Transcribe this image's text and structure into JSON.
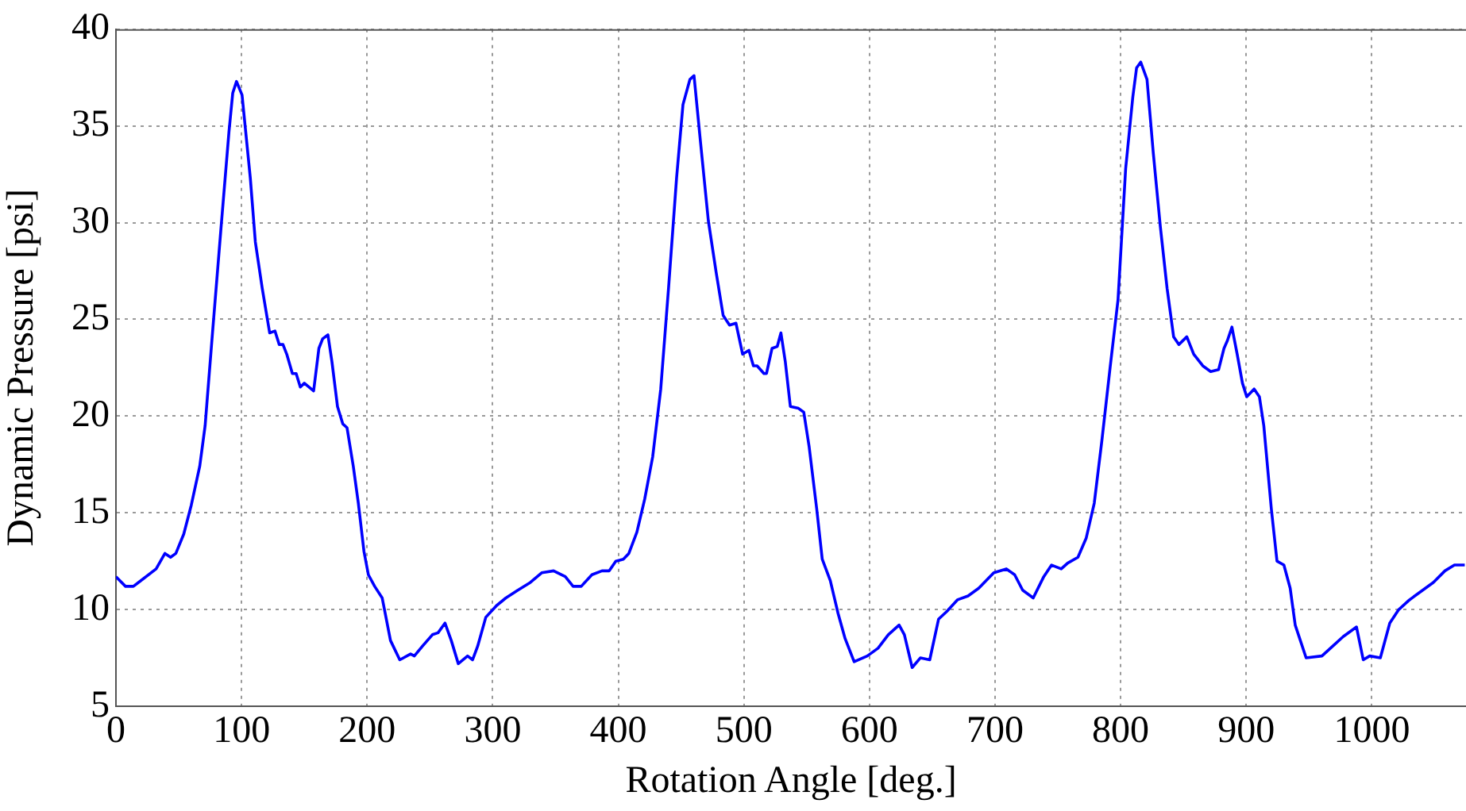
{
  "chart_data": {
    "type": "line",
    "xlabel": "Rotation Angle [deg.]",
    "ylabel": "Dynamic Pressure [psi]",
    "x": [
      0,
      7.6,
      13.9,
      20,
      32,
      39,
      43.5,
      47.7,
      54,
      60,
      66.7,
      71,
      77,
      83.5,
      90,
      93,
      96,
      100.4,
      107,
      111,
      116.5,
      122.4,
      126.6,
      130,
      133,
      136,
      140.5,
      143.5,
      146.8,
      150,
      157.4,
      161.6,
      164.6,
      168.8,
      172,
      176.4,
      180.6,
      184,
      189,
      193,
      197.5,
      201,
      206,
      212,
      218.6,
      226,
      234.6,
      237.6,
      244,
      252,
      256.5,
      262,
      267,
      272.6,
      280,
      284,
      288,
      294.5,
      303,
      310.5,
      320,
      330,
      339,
      348.5,
      357.8,
      364,
      370.5,
      379,
      387,
      392.8,
      398,
      404,
      408.4,
      414.8,
      421,
      427.4,
      433.8,
      440,
      446.4,
      451.5,
      457,
      460.3,
      465.4,
      471.7,
      478,
      483.5,
      488.6,
      493.7,
      499,
      504,
      507.6,
      510.5,
      516,
      518,
      522.4,
      526.6,
      529.5,
      533,
      537,
      543.5,
      547.7,
      552,
      558,
      562.4,
      568.8,
      575,
      580.6,
      587.8,
      598.3,
      606.8,
      615,
      623.6,
      627.8,
      634,
      640.5,
      648,
      655,
      661.6,
      670,
      678.5,
      687,
      699,
      709,
      715.6,
      722,
      730.4,
      738.8,
      745,
      752.7,
      757.8,
      766,
      772.6,
      779,
      785,
      791.6,
      797.9,
      804,
      809.7,
      812.7,
      816,
      821,
      826,
      831.6,
      837,
      842.2,
      846.4,
      852.7,
      858.2,
      865.4,
      871.7,
      878,
      882.3,
      885,
      888.6,
      892.8,
      897,
      900.4,
      906.3,
      910.5,
      914,
      920,
      924.5,
      930,
      935,
      939,
      947.7,
      960.3,
      968.8,
      977.2,
      985.7,
      987.8,
      993.2,
      998.3,
      1006.8,
      1014.3,
      1021.5,
      1030,
      1040.5,
      1049,
      1058.2,
      1065.8,
      1074
    ],
    "values": [
      11.7,
      11.2,
      11.2,
      11.5,
      12.1,
      12.9,
      12.7,
      12.9,
      13.9,
      15.4,
      17.4,
      19.5,
      24.4,
      29.6,
      34.7,
      36.7,
      37.3,
      36.6,
      32.3,
      29,
      26.6,
      24.3,
      24.4,
      23.7,
      23.7,
      23.2,
      22.2,
      22.2,
      21.5,
      21.7,
      21.3,
      23.5,
      24,
      24.2,
      22.8,
      20.5,
      19.6,
      19.4,
      17.4,
      15.5,
      13,
      11.8,
      11.2,
      10.6,
      8.4,
      7.4,
      7.7,
      7.6,
      8.1,
      8.7,
      8.8,
      9.3,
      8.4,
      7.2,
      7.6,
      7.4,
      8.1,
      9.6,
      10.2,
      10.6,
      11,
      11.4,
      11.9,
      12,
      11.7,
      11.2,
      11.2,
      11.8,
      12,
      12,
      12.5,
      12.6,
      12.9,
      14,
      15.7,
      17.9,
      21.4,
      26.6,
      32.3,
      36.1,
      37.4,
      37.6,
      34.2,
      30.1,
      27.4,
      25.2,
      24.7,
      24.8,
      23.2,
      23.4,
      22.6,
      22.6,
      22.2,
      22.2,
      23.5,
      23.6,
      24.3,
      22.8,
      20.5,
      20.4,
      20.2,
      18.4,
      15.2,
      12.6,
      11.5,
      9.8,
      8.5,
      7.3,
      7.6,
      8,
      8.7,
      9.2,
      8.7,
      7,
      7.5,
      7.4,
      9.5,
      9.9,
      10.5,
      10.7,
      11.1,
      11.9,
      12.1,
      11.8,
      11,
      10.6,
      11.7,
      12.3,
      12.1,
      12.4,
      12.7,
      13.7,
      15.5,
      18.7,
      22.5,
      26,
      32.8,
      36.5,
      38,
      38.3,
      37.4,
      33.6,
      29.8,
      26.6,
      24.1,
      23.7,
      24.1,
      23.2,
      22.6,
      22.3,
      22.4,
      23.5,
      23.9,
      24.6,
      23.2,
      21.7,
      21,
      21.4,
      21,
      19.5,
      15.2,
      12.5,
      12.3,
      11.1,
      9.2,
      7.5,
      7.6,
      8.1,
      8.6,
      9,
      9.1,
      7.4,
      7.6,
      7.5,
      9.3,
      10,
      10.5,
      11,
      11.4,
      12,
      12.3,
      12.3
    ],
    "color": "#0000ff",
    "xlim": [
      0,
      1075
    ],
    "xticks": [
      0,
      100,
      200,
      300,
      400,
      500,
      600,
      700,
      800,
      900,
      1000
    ],
    "ylim": [
      5,
      40
    ],
    "yticks": [
      5,
      10,
      15,
      20,
      25,
      30,
      35,
      40
    ],
    "grid": true,
    "marker": "none",
    "line_style": "solid",
    "legend": false
  }
}
